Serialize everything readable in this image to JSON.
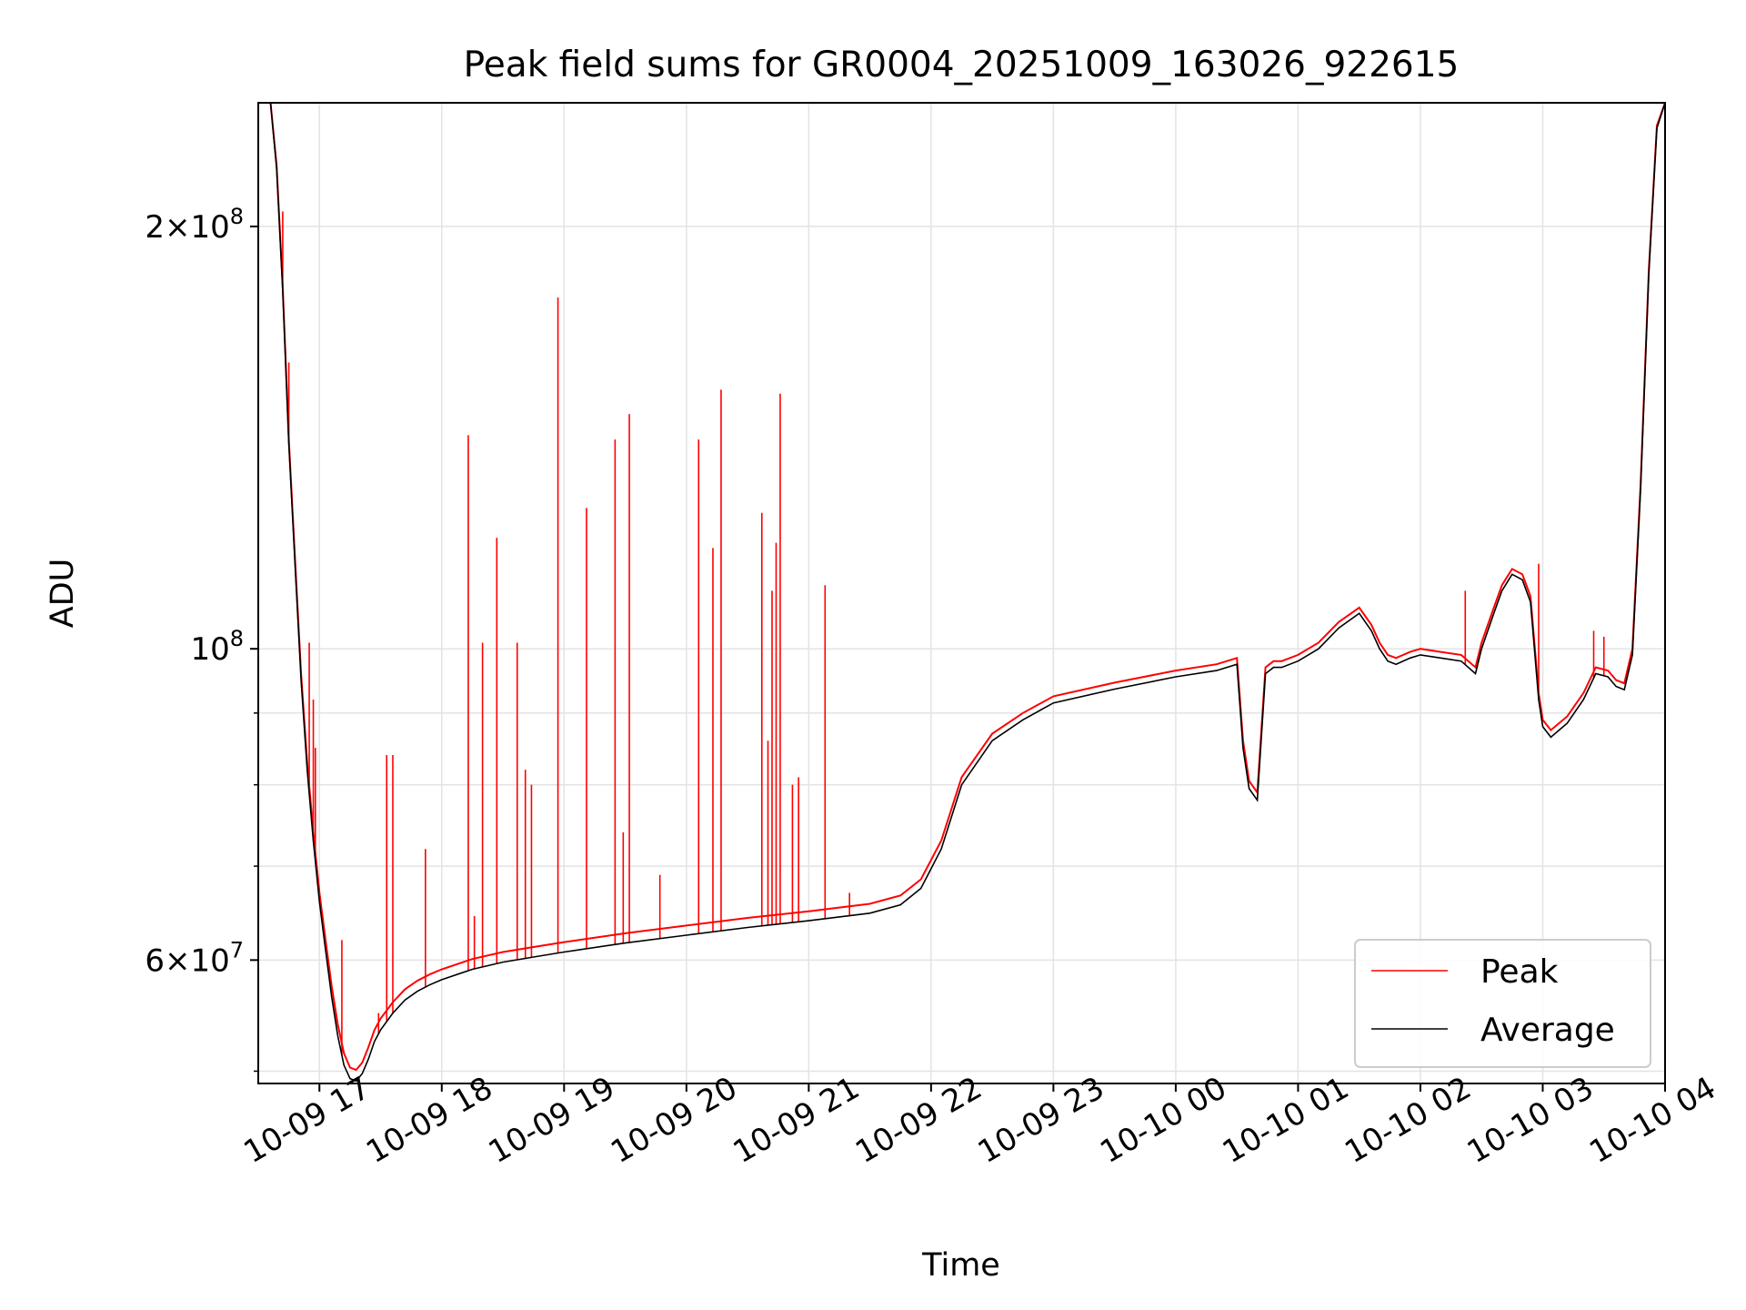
{
  "chart_data": {
    "type": "line",
    "title": "Peak field sums for GR0004_20251009_163026_922615",
    "xlabel": "Time",
    "ylabel": "ADU",
    "yscale": "log",
    "grid": true,
    "legend_position": "lower-right",
    "xlim": [
      "2025-10-09 16:30",
      "2025-10-10 04:00"
    ],
    "ylim": [
      49000000,
      245000000
    ],
    "x_ticks": [
      {
        "at": "2025-10-09 17:00",
        "label": "10-09 17"
      },
      {
        "at": "2025-10-09 18:00",
        "label": "10-09 18"
      },
      {
        "at": "2025-10-09 19:00",
        "label": "10-09 19"
      },
      {
        "at": "2025-10-09 20:00",
        "label": "10-09 20"
      },
      {
        "at": "2025-10-09 21:00",
        "label": "10-09 21"
      },
      {
        "at": "2025-10-09 22:00",
        "label": "10-09 22"
      },
      {
        "at": "2025-10-09 23:00",
        "label": "10-09 23"
      },
      {
        "at": "2025-10-10 00:00",
        "label": "10-10 00"
      },
      {
        "at": "2025-10-10 01:00",
        "label": "10-10 01"
      },
      {
        "at": "2025-10-10 02:00",
        "label": "10-10 02"
      },
      {
        "at": "2025-10-10 03:00",
        "label": "10-10 03"
      },
      {
        "at": "2025-10-10 04:00",
        "label": "10-10 04"
      }
    ],
    "y_major_ticks": [
      {
        "value": 60000000,
        "mantissa": "6",
        "exponent": "7"
      },
      {
        "value": 100000000,
        "mantissa": "",
        "exponent": "8"
      },
      {
        "value": 200000000,
        "mantissa": "2",
        "exponent": "8"
      }
    ],
    "y_minor_ticks": [
      50000000,
      70000000,
      80000000,
      90000000
    ],
    "series": [
      {
        "name": "Average",
        "color": "#000000",
        "x": [
          "2025-10-09 16:36",
          "2025-10-09 16:39",
          "2025-10-09 16:42",
          "2025-10-09 16:45",
          "2025-10-09 16:48",
          "2025-10-09 16:51",
          "2025-10-09 16:54",
          "2025-10-09 16:57",
          "2025-10-09 17:00",
          "2025-10-09 17:03",
          "2025-10-09 17:06",
          "2025-10-09 17:09",
          "2025-10-09 17:12",
          "2025-10-09 17:15",
          "2025-10-09 17:18",
          "2025-10-09 17:21",
          "2025-10-09 17:24",
          "2025-10-09 17:27",
          "2025-10-09 17:30",
          "2025-10-09 17:36",
          "2025-10-09 17:42",
          "2025-10-09 17:48",
          "2025-10-09 17:54",
          "2025-10-09 18:00",
          "2025-10-09 18:15",
          "2025-10-09 18:30",
          "2025-10-09 18:45",
          "2025-10-09 19:00",
          "2025-10-09 19:30",
          "2025-10-09 20:00",
          "2025-10-09 20:30",
          "2025-10-09 21:00",
          "2025-10-09 21:30",
          "2025-10-09 21:45",
          "2025-10-09 21:55",
          "2025-10-09 22:05",
          "2025-10-09 22:15",
          "2025-10-09 22:30",
          "2025-10-09 22:45",
          "2025-10-09 23:00",
          "2025-10-09 23:30",
          "2025-10-10 00:00",
          "2025-10-10 00:20",
          "2025-10-10 00:30",
          "2025-10-10 00:33",
          "2025-10-10 00:36",
          "2025-10-10 00:40",
          "2025-10-10 00:44",
          "2025-10-10 00:46",
          "2025-10-10 00:48",
          "2025-10-10 00:52",
          "2025-10-10 01:00",
          "2025-10-10 01:10",
          "2025-10-10 01:20",
          "2025-10-10 01:30",
          "2025-10-10 01:36",
          "2025-10-10 01:40",
          "2025-10-10 01:44",
          "2025-10-10 01:48",
          "2025-10-10 01:55",
          "2025-10-10 02:00",
          "2025-10-10 02:10",
          "2025-10-10 02:20",
          "2025-10-10 02:27",
          "2025-10-10 02:30",
          "2025-10-10 02:36",
          "2025-10-10 02:40",
          "2025-10-10 02:45",
          "2025-10-10 02:50",
          "2025-10-10 02:54",
          "2025-10-10 02:58",
          "2025-10-10 03:00",
          "2025-10-10 03:04",
          "2025-10-10 03:08",
          "2025-10-10 03:12",
          "2025-10-10 03:20",
          "2025-10-10 03:26",
          "2025-10-10 03:32",
          "2025-10-10 03:36",
          "2025-10-10 03:40",
          "2025-10-10 03:44",
          "2025-10-10 03:48",
          "2025-10-10 03:52",
          "2025-10-10 03:56",
          "2025-10-10 04:00"
        ],
        "y": [
          245000000,
          220000000,
          180000000,
          140000000,
          115000000,
          95000000,
          82000000,
          73000000,
          66000000,
          61000000,
          56500000,
          53000000,
          50500000,
          49400000,
          49200000,
          49800000,
          51000000,
          52500000,
          53500000,
          55000000,
          56200000,
          57000000,
          57600000,
          58100000,
          59100000,
          59800000,
          60300000,
          60800000,
          61700000,
          62500000,
          63300000,
          64000000,
          64800000,
          65700000,
          67500000,
          72000000,
          80000000,
          86000000,
          89000000,
          91500000,
          93600000,
          95500000,
          96500000,
          97500000,
          85000000,
          79500000,
          78000000,
          96000000,
          96500000,
          97000000,
          97000000,
          98000000,
          100000000,
          103500000,
          106000000,
          103000000,
          100000000,
          98000000,
          97500000,
          98500000,
          99000000,
          98500000,
          98000000,
          96000000,
          100000000,
          106000000,
          110000000,
          113000000,
          112000000,
          108000000,
          92000000,
          88000000,
          86500000,
          87500000,
          88500000,
          92000000,
          96000000,
          95500000,
          94000000,
          93500000,
          99000000,
          130000000,
          185000000,
          235000000,
          245000000
        ]
      },
      {
        "name": "Peak",
        "color": "#ff0000",
        "x": [
          "2025-10-09 16:36",
          "2025-10-09 16:39",
          "2025-10-09 16:42",
          "2025-10-09 16:45",
          "2025-10-09 16:48",
          "2025-10-09 16:51",
          "2025-10-09 16:54",
          "2025-10-09 16:57",
          "2025-10-09 17:00",
          "2025-10-09 17:03",
          "2025-10-09 17:06",
          "2025-10-09 17:09",
          "2025-10-09 17:12",
          "2025-10-09 17:15",
          "2025-10-09 17:18",
          "2025-10-09 17:21",
          "2025-10-09 17:24",
          "2025-10-09 17:27",
          "2025-10-09 17:30",
          "2025-10-09 17:36",
          "2025-10-09 17:42",
          "2025-10-09 17:48",
          "2025-10-09 17:54",
          "2025-10-09 18:00",
          "2025-10-09 18:15",
          "2025-10-09 18:30",
          "2025-10-09 18:45",
          "2025-10-09 19:00",
          "2025-10-09 19:30",
          "2025-10-09 20:00",
          "2025-10-09 20:30",
          "2025-10-09 21:00",
          "2025-10-09 21:30",
          "2025-10-09 21:45",
          "2025-10-09 21:55",
          "2025-10-09 22:05",
          "2025-10-09 22:15",
          "2025-10-09 22:30",
          "2025-10-09 22:45",
          "2025-10-09 23:00",
          "2025-10-09 23:30",
          "2025-10-10 00:00",
          "2025-10-10 00:20",
          "2025-10-10 00:30",
          "2025-10-10 00:33",
          "2025-10-10 00:36",
          "2025-10-10 00:40",
          "2025-10-10 00:44",
          "2025-10-10 00:46",
          "2025-10-10 00:48",
          "2025-10-10 00:52",
          "2025-10-10 01:00",
          "2025-10-10 01:10",
          "2025-10-10 01:20",
          "2025-10-10 01:30",
          "2025-10-10 01:36",
          "2025-10-10 01:40",
          "2025-10-10 01:44",
          "2025-10-10 01:48",
          "2025-10-10 01:55",
          "2025-10-10 02:00",
          "2025-10-10 02:10",
          "2025-10-10 02:20",
          "2025-10-10 02:27",
          "2025-10-10 02:30",
          "2025-10-10 02:36",
          "2025-10-10 02:40",
          "2025-10-10 02:45",
          "2025-10-10 02:50",
          "2025-10-10 02:54",
          "2025-10-10 02:58",
          "2025-10-10 03:00",
          "2025-10-10 03:04",
          "2025-10-10 03:08",
          "2025-10-10 03:12",
          "2025-10-10 03:20",
          "2025-10-10 03:26",
          "2025-10-10 03:32",
          "2025-10-10 03:36",
          "2025-10-10 03:40",
          "2025-10-10 03:44",
          "2025-10-10 03:48",
          "2025-10-10 03:52",
          "2025-10-10 03:56",
          "2025-10-10 04:00"
        ],
        "y": [
          245000000,
          221000000,
          181000000,
          141000000,
          116000000,
          96000000,
          83000000,
          74000000,
          67000000,
          62000000,
          57500000,
          54000000,
          51500000,
          50300000,
          50100000,
          50700000,
          52000000,
          53500000,
          54500000,
          56000000,
          57200000,
          58000000,
          58600000,
          59100000,
          60100000,
          60800000,
          61300000,
          61800000,
          62700000,
          63500000,
          64300000,
          65000000,
          65800000,
          66700000,
          68500000,
          73000000,
          81000000,
          87000000,
          90000000,
          92500000,
          94600000,
          96500000,
          97500000,
          98500000,
          86000000,
          80500000,
          79000000,
          97000000,
          97500000,
          98000000,
          98000000,
          99000000,
          101000000,
          104500000,
          107000000,
          104000000,
          101000000,
          99000000,
          98500000,
          99500000,
          100000000,
          99500000,
          99000000,
          97000000,
          101000000,
          107000000,
          111000000,
          114000000,
          113000000,
          109000000,
          93000000,
          89000000,
          87500000,
          88500000,
          89500000,
          93000000,
          97000000,
          96500000,
          95000000,
          94500000,
          100000000,
          131000000,
          186000000,
          236000000,
          245000000
        ]
      }
    ],
    "peak_spikes": [
      {
        "x": "2025-10-09 16:42",
        "y": 205000000
      },
      {
        "x": "2025-10-09 16:45",
        "y": 160000000
      },
      {
        "x": "2025-10-09 16:55",
        "y": 101000000
      },
      {
        "x": "2025-10-09 16:57",
        "y": 92000000
      },
      {
        "x": "2025-10-09 16:58",
        "y": 85000000
      },
      {
        "x": "2025-10-09 17:11",
        "y": 62000000
      },
      {
        "x": "2025-10-09 17:29",
        "y": 55000000
      },
      {
        "x": "2025-10-09 17:33",
        "y": 84000000
      },
      {
        "x": "2025-10-09 17:36",
        "y": 84000000
      },
      {
        "x": "2025-10-09 17:52",
        "y": 72000000
      },
      {
        "x": "2025-10-09 18:13",
        "y": 142000000
      },
      {
        "x": "2025-10-09 18:16",
        "y": 64500000
      },
      {
        "x": "2025-10-09 18:20",
        "y": 101000000
      },
      {
        "x": "2025-10-09 18:27",
        "y": 120000000
      },
      {
        "x": "2025-10-09 18:37",
        "y": 101000000
      },
      {
        "x": "2025-10-09 18:41",
        "y": 82000000
      },
      {
        "x": "2025-10-09 18:44",
        "y": 80000000
      },
      {
        "x": "2025-10-09 18:57",
        "y": 178000000
      },
      {
        "x": "2025-10-09 19:11",
        "y": 126000000
      },
      {
        "x": "2025-10-09 19:25",
        "y": 141000000
      },
      {
        "x": "2025-10-09 19:29",
        "y": 74000000
      },
      {
        "x": "2025-10-09 19:32",
        "y": 147000000
      },
      {
        "x": "2025-10-09 19:47",
        "y": 69000000
      },
      {
        "x": "2025-10-09 20:06",
        "y": 141000000
      },
      {
        "x": "2025-10-09 20:13",
        "y": 118000000
      },
      {
        "x": "2025-10-09 20:17",
        "y": 153000000
      },
      {
        "x": "2025-10-09 20:37",
        "y": 125000000
      },
      {
        "x": "2025-10-09 20:40",
        "y": 86000000
      },
      {
        "x": "2025-10-09 20:42",
        "y": 110000000
      },
      {
        "x": "2025-10-09 20:44",
        "y": 119000000
      },
      {
        "x": "2025-10-09 20:46",
        "y": 152000000
      },
      {
        "x": "2025-10-09 20:52",
        "y": 80000000
      },
      {
        "x": "2025-10-09 20:55",
        "y": 81000000
      },
      {
        "x": "2025-10-09 21:08",
        "y": 111000000
      },
      {
        "x": "2025-10-09 21:20",
        "y": 67000000
      },
      {
        "x": "2025-10-10 02:22",
        "y": 110000000
      },
      {
        "x": "2025-10-10 02:58",
        "y": 115000000
      },
      {
        "x": "2025-10-10 03:25",
        "y": 103000000
      },
      {
        "x": "2025-10-10 03:30",
        "y": 102000000
      }
    ]
  }
}
